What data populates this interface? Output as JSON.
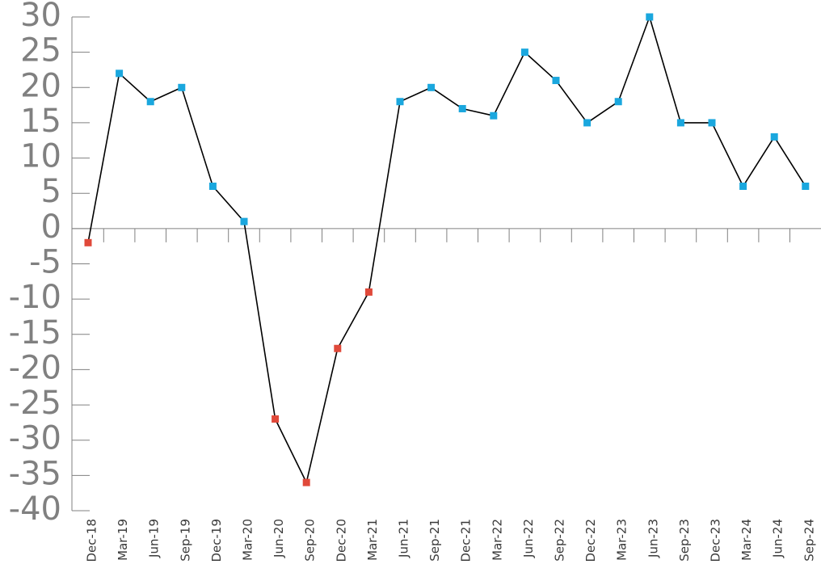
{
  "chart_data": {
    "type": "line",
    "title": "",
    "xlabel": "",
    "ylabel": "",
    "ylim": [
      -40,
      30
    ],
    "yticks": [
      30,
      25,
      20,
      15,
      10,
      5,
      0,
      -5,
      -10,
      -15,
      -20,
      -25,
      -30,
      -35,
      -40
    ],
    "grid": false,
    "categories": [
      "Dec-18",
      "Mar-19",
      "Jun-19",
      "Sep-19",
      "Dec-19",
      "Mar-20",
      "Jun-20",
      "Sep-20",
      "Dec-20",
      "Mar-21",
      "Jun-21",
      "Sep-21",
      "Dec-21",
      "Mar-22",
      "Jun-22",
      "Sep-22",
      "Dec-22",
      "Mar-23",
      "Jun-23",
      "Sep-23",
      "Dec-23",
      "Mar-24",
      "Jun-24",
      "Sep-24"
    ],
    "series": [
      {
        "values": [
          -2,
          22,
          18,
          20,
          6,
          1,
          -27,
          -36,
          -17,
          -9,
          18,
          20,
          17,
          16,
          25,
          21,
          15,
          18,
          30,
          15,
          15,
          6,
          13,
          6
        ]
      }
    ],
    "colors": {
      "line": "#000000",
      "positive_marker": "#1aa7de",
      "negative_marker": "#e0493a",
      "axis": "#808080",
      "ytick_text": "#808080",
      "xtick_text": "#3a3a3a"
    }
  }
}
